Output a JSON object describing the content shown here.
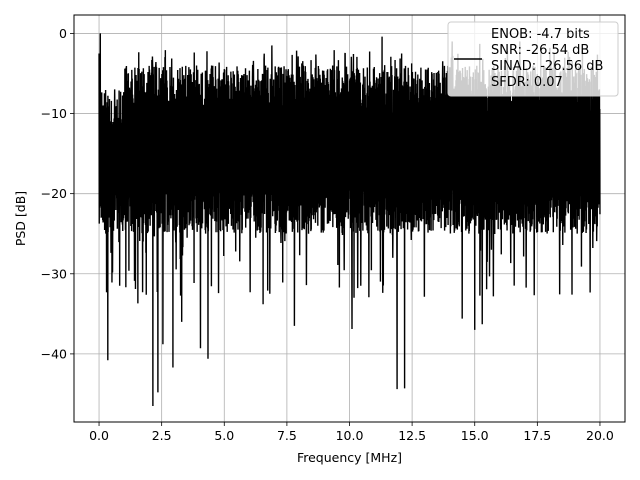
{
  "chart_data": {
    "type": "line",
    "title": "",
    "xlabel": "Frequency [MHz]",
    "ylabel": "PSD [dB]",
    "xlim": [
      -1.0,
      21.0
    ],
    "ylim": [
      -48.5,
      2.3
    ],
    "grid": true,
    "xticks": [
      0.0,
      2.5,
      5.0,
      7.5,
      10.0,
      12.5,
      15.0,
      17.5,
      20.0
    ],
    "xtick_labels": [
      "0.0",
      "2.5",
      "5.0",
      "7.5",
      "10.0",
      "12.5",
      "15.0",
      "17.5",
      "20.0"
    ],
    "yticks": [
      0,
      -10,
      -20,
      -30,
      -40
    ],
    "ytick_labels": [
      "0",
      "−10",
      "−20",
      "−30",
      "−40"
    ],
    "legend": {
      "placement": "upper right",
      "entries": [
        "ENOB: -4.7 bits",
        "SNR: -26.54 dB",
        "SINAD: -26.56 dB",
        "SFDR: 0.07"
      ]
    },
    "series": [
      {
        "color": "#000000",
        "x_start": 0.0,
        "x_end": 20.0,
        "envelope_upper_approx": -4,
        "envelope_lower_approx": -25,
        "peaks": [
          {
            "x": 0.05,
            "y": 0.0
          },
          {
            "x": 0.0,
            "y": -2.5
          },
          {
            "x": 6.9,
            "y": -1.5
          },
          {
            "x": 11.3,
            "y": -0.4
          },
          {
            "x": 14.1,
            "y": -1.0
          },
          {
            "x": 15.2,
            "y": -1.3
          },
          {
            "x": 16.8,
            "y": -1.0
          },
          {
            "x": 18.0,
            "y": -1.8
          }
        ],
        "dips": [
          {
            "x": 0.35,
            "y": -40.8
          },
          {
            "x": 1.55,
            "y": -33.7
          },
          {
            "x": 2.15,
            "y": -46.5
          },
          {
            "x": 2.35,
            "y": -44.8
          },
          {
            "x": 2.55,
            "y": -38.8
          },
          {
            "x": 2.95,
            "y": -41.7
          },
          {
            "x": 3.3,
            "y": -36.0
          },
          {
            "x": 4.05,
            "y": -39.3
          },
          {
            "x": 4.35,
            "y": -40.6
          },
          {
            "x": 6.55,
            "y": -33.8
          },
          {
            "x": 7.8,
            "y": -36.5
          },
          {
            "x": 10.1,
            "y": -36.9
          },
          {
            "x": 11.9,
            "y": -44.4
          },
          {
            "x": 12.2,
            "y": -44.3
          },
          {
            "x": 14.5,
            "y": -35.6
          },
          {
            "x": 15.0,
            "y": -37.0
          },
          {
            "x": 15.3,
            "y": -36.3
          }
        ]
      }
    ]
  }
}
